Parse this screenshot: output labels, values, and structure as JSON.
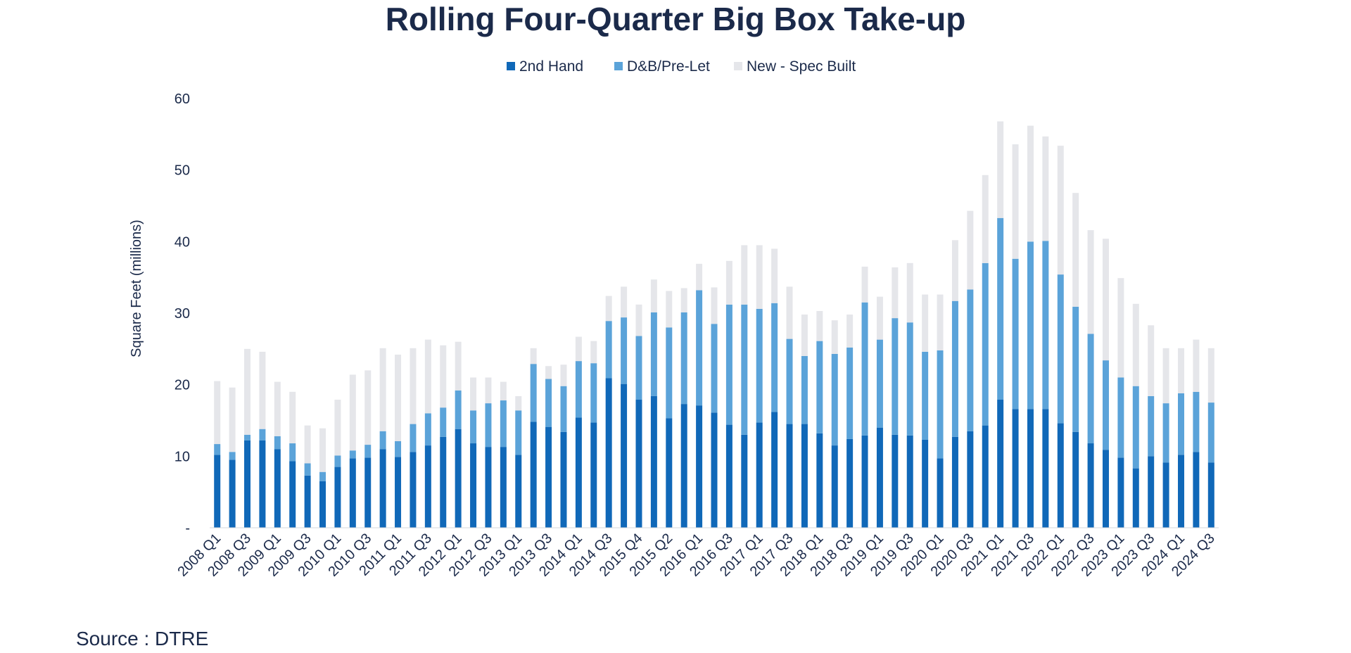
{
  "source": "Source : DTRE",
  "chart_data": {
    "type": "bar",
    "stacked": true,
    "title": "Rolling Four-Quarter Big Box Take-up",
    "ylabel": "Square Feet (millions)",
    "xlabel": "",
    "ylim": [
      0,
      60
    ],
    "yticks": [
      {
        "value": 0,
        "label": "-"
      },
      {
        "value": 10,
        "label": "10"
      },
      {
        "value": 20,
        "label": "20"
      },
      {
        "value": 30,
        "label": "30"
      },
      {
        "value": 40,
        "label": "40"
      },
      {
        "value": 50,
        "label": "50"
      },
      {
        "value": 60,
        "label": "60"
      }
    ],
    "legend_position": "top-center",
    "grid": false,
    "categories": [
      "2008 Q1",
      "2008 Q2",
      "2008 Q3",
      "2008 Q4",
      "2009 Q1",
      "2009 Q2",
      "2009 Q3",
      "2009 Q4",
      "2010 Q1",
      "2010 Q2",
      "2010 Q3",
      "2010 Q4",
      "2011 Q1",
      "2011 Q2",
      "2011 Q3",
      "2011 Q4",
      "2012 Q1",
      "2012 Q2",
      "2012 Q3",
      "2012 Q4",
      "2013 Q1",
      "2013 Q2",
      "2013 Q3",
      "2013 Q4",
      "2014 Q1",
      "2014 Q2",
      "2014 Q3",
      "2014 Q4",
      "2015 Q4",
      "2015 Q1",
      "2015 Q2",
      "2015 Q3",
      "2016 Q1",
      "2016 Q2",
      "2016 Q3",
      "2016 Q4",
      "2017 Q1",
      "2017 Q2",
      "2017 Q3",
      "2017 Q4",
      "2018 Q1",
      "2018 Q2",
      "2018 Q3",
      "2018 Q4",
      "2019 Q1",
      "2019 Q2",
      "2019 Q3",
      "2019 Q4",
      "2020 Q1",
      "2020 Q2",
      "2020 Q3",
      "2020 Q4",
      "2021 Q1",
      "2021 Q2",
      "2021 Q3",
      "2021 Q4",
      "2022 Q1",
      "2022 Q2",
      "2022 Q3",
      "2022 Q4",
      "2023 Q1",
      "2023 Q2",
      "2023 Q3",
      "2023 Q4",
      "2024 Q1",
      "2024 Q2",
      "2024 Q3"
    ],
    "xtick_labels": [
      "2008 Q1",
      "2008 Q3",
      "2009 Q1",
      "2009 Q3",
      "2010 Q1",
      "2010 Q3",
      "2011 Q1",
      "2011 Q3",
      "2012 Q1",
      "2012 Q3",
      "2013 Q1",
      "2013 Q3",
      "2014 Q1",
      "2014 Q3",
      "2015 Q4",
      "2015 Q2",
      "2016 Q1",
      "2016 Q3",
      "2017 Q1",
      "2017 Q3",
      "2018 Q1",
      "2018 Q3",
      "2019 Q1",
      "2019 Q3",
      "2020 Q1",
      "2020 Q3",
      "2021 Q1",
      "2021 Q3",
      "2022 Q1",
      "2022 Q3",
      "2023 Q1",
      "2023 Q3",
      "2024 Q1",
      "2024 Q3"
    ],
    "series": [
      {
        "name": "2nd Hand",
        "color": "#1068b8",
        "values": [
          10.2,
          9.5,
          12.2,
          12.2,
          11.0,
          9.3,
          7.3,
          6.5,
          8.5,
          9.7,
          9.8,
          11.0,
          9.9,
          10.6,
          11.5,
          12.7,
          13.8,
          11.8,
          11.3,
          11.3,
          10.2,
          14.8,
          14.1,
          13.4,
          15.4,
          14.7,
          20.9,
          20.1,
          17.9,
          18.4,
          15.3,
          17.3,
          17.1,
          16.1,
          14.4,
          13.0,
          14.7,
          16.2,
          14.5,
          14.5,
          13.2,
          11.5,
          12.4,
          12.9,
          14.0,
          13.0,
          12.9,
          12.3,
          9.7,
          12.7,
          13.5,
          14.3,
          17.9,
          16.6,
          16.6,
          16.6,
          14.6,
          13.4,
          11.8,
          10.9,
          9.8,
          8.3,
          10.0,
          9.1,
          10.2,
          10.6,
          9.1
        ]
      },
      {
        "name": "D&B/Pre-Let",
        "color": "#5ba3d9",
        "values": [
          1.5,
          1.1,
          0.8,
          1.6,
          1.8,
          2.5,
          1.7,
          1.3,
          1.6,
          1.1,
          1.8,
          2.5,
          2.2,
          3.9,
          4.5,
          4.1,
          5.4,
          4.6,
          6.1,
          6.5,
          6.2,
          8.1,
          6.7,
          6.4,
          7.9,
          8.3,
          8.0,
          9.3,
          8.9,
          11.7,
          12.7,
          12.8,
          16.1,
          12.4,
          16.8,
          18.2,
          15.9,
          15.2,
          11.9,
          9.5,
          12.9,
          12.8,
          12.8,
          18.6,
          12.3,
          16.3,
          15.8,
          12.3,
          15.1,
          19.0,
          19.8,
          22.7,
          25.4,
          21.0,
          23.4,
          23.5,
          20.8,
          17.5,
          15.3,
          12.5,
          11.2,
          11.5,
          8.4,
          8.3,
          8.6,
          8.4,
          8.4
        ]
      },
      {
        "name": "New - Spec Built",
        "color": "#e5e6ea",
        "values": [
          8.8,
          9.0,
          12.0,
          10.8,
          7.6,
          7.2,
          5.3,
          6.1,
          7.8,
          10.6,
          10.4,
          11.6,
          12.1,
          10.6,
          10.3,
          8.7,
          6.8,
          4.6,
          3.6,
          2.6,
          2.0,
          2.2,
          1.8,
          3.0,
          3.4,
          3.1,
          3.5,
          4.3,
          4.4,
          4.6,
          5.1,
          3.4,
          3.7,
          5.1,
          6.1,
          8.3,
          8.9,
          7.6,
          7.3,
          5.8,
          4.2,
          4.7,
          4.6,
          5.0,
          6.0,
          7.1,
          8.3,
          8.0,
          7.8,
          8.5,
          11.0,
          12.3,
          13.5,
          16.0,
          16.2,
          14.6,
          18.0,
          15.9,
          14.5,
          17.0,
          13.9,
          11.5,
          9.9,
          7.7,
          6.3,
          7.3,
          7.6
        ]
      }
    ]
  }
}
